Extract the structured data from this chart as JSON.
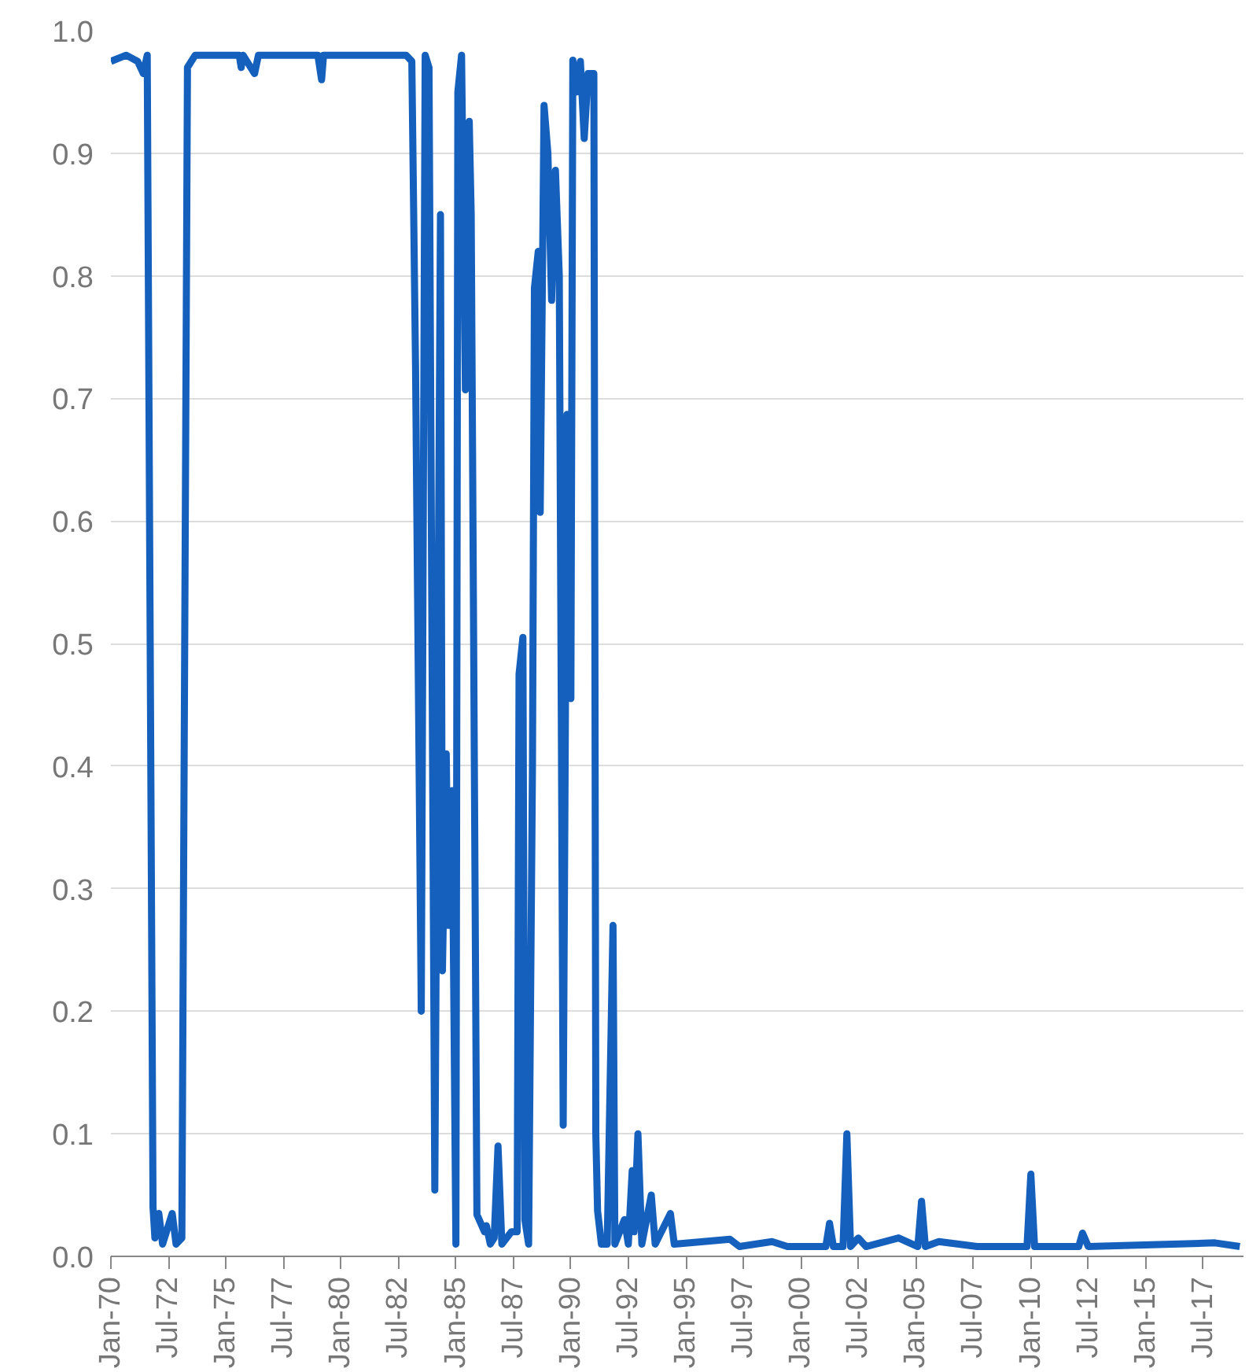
{
  "chart_data": {
    "type": "line",
    "color": "#1560bd",
    "grid": "y",
    "marker": "none",
    "line_style": "solid",
    "xlim": [
      "1970-01",
      "2019-04"
    ],
    "ylim": [
      0,
      1
    ],
    "yticks": [
      {
        "value": 0,
        "label": "0.0"
      },
      {
        "value": 0.1,
        "label": "0.1"
      },
      {
        "value": 0.2,
        "label": "0.2"
      },
      {
        "value": 0.3,
        "label": "0.3"
      },
      {
        "value": 0.4,
        "label": "0.4"
      },
      {
        "value": 0.5,
        "label": "0.5"
      },
      {
        "value": 0.6,
        "label": "0.6"
      },
      {
        "value": 0.7,
        "label": "0.7"
      },
      {
        "value": 0.8,
        "label": "0.8"
      },
      {
        "value": 0.9,
        "label": "0.9"
      },
      {
        "value": 1,
        "label": "1.0"
      }
    ],
    "xticks": [
      {
        "value": "1970-01",
        "label": "Jan-70"
      },
      {
        "value": "1972-07",
        "label": "Jul-72"
      },
      {
        "value": "1975-01",
        "label": "Jan-75"
      },
      {
        "value": "1977-07",
        "label": "Jul-77"
      },
      {
        "value": "1980-01",
        "label": "Jan-80"
      },
      {
        "value": "1982-07",
        "label": "Jul-82"
      },
      {
        "value": "1985-01",
        "label": "Jan-85"
      },
      {
        "value": "1987-07",
        "label": "Jul-87"
      },
      {
        "value": "1990-01",
        "label": "Jan-90"
      },
      {
        "value": "1992-07",
        "label": "Jul-92"
      },
      {
        "value": "1995-01",
        "label": "Jan-95"
      },
      {
        "value": "1997-07",
        "label": "Jul-97"
      },
      {
        "value": "2000-01",
        "label": "Jan-00"
      },
      {
        "value": "2002-07",
        "label": "Jul-02"
      },
      {
        "value": "2005-01",
        "label": "Jan-05"
      },
      {
        "value": "2007-07",
        "label": "Jul-07"
      },
      {
        "value": "2010-01",
        "label": "Jan-10"
      },
      {
        "value": "2012-07",
        "label": "Jul-12"
      },
      {
        "value": "2015-01",
        "label": "Jan-15"
      },
      {
        "value": "2017-07",
        "label": "Jul-17"
      }
    ],
    "x": [
      "1970-01",
      "1970-09",
      "1971-03",
      "1971-06",
      "1971-08",
      "1971-11",
      "1971-12",
      "1972-02",
      "1972-04",
      "1972-09",
      "1972-11",
      "1973-02",
      "1973-05",
      "1973-09",
      "1975-08",
      "1975-09",
      "1975-10",
      "1976-04",
      "1976-06",
      "1979-01",
      "1979-03",
      "1979-04",
      "1982-11",
      "1983-02",
      "1983-04",
      "1983-07",
      "1983-09",
      "1983-11",
      "1984-02",
      "1984-05",
      "1984-06",
      "1984-08",
      "1984-09",
      "1984-11",
      "1985-01",
      "1985-02",
      "1985-04",
      "1985-06",
      "1985-08",
      "1985-09",
      "1985-12",
      "1986-04",
      "1986-05",
      "1986-07",
      "1986-09",
      "1986-11",
      "1987-01",
      "1987-06",
      "1987-09",
      "1987-10",
      "1987-12",
      "1988-01",
      "1988-03",
      "1988-05",
      "1988-06",
      "1988-08",
      "1988-09",
      "1988-11",
      "1989-01",
      "1989-03",
      "1989-05",
      "1989-07",
      "1989-09",
      "1989-11",
      "1990-01",
      "1990-02",
      "1990-04",
      "1990-06",
      "1990-08",
      "1990-10",
      "1991-01",
      "1991-02",
      "1991-03",
      "1991-05",
      "1991-08",
      "1991-11",
      "1991-12",
      "1992-05",
      "1992-07",
      "1992-09",
      "1992-10",
      "1992-12",
      "1993-02",
      "1993-07",
      "1993-09",
      "1994-05",
      "1994-07",
      "1996-12",
      "1997-05",
      "1998-10",
      "1999-06",
      "2001-02",
      "2001-04",
      "2001-06",
      "2001-11",
      "2002-01",
      "2002-03",
      "2002-07",
      "2002-11",
      "2004-04",
      "2005-02",
      "2005-04",
      "2005-06",
      "2006-01",
      "2007-09",
      "2009-11",
      "2010-01",
      "2010-03",
      "2012-02",
      "2012-04",
      "2012-07",
      "2018-01",
      "2019-02"
    ],
    "values": [
      0.975,
      0.98,
      0.975,
      0.965,
      0.98,
      0.04,
      0.015,
      0.035,
      0.01,
      0.035,
      0.01,
      0.015,
      0.97,
      0.98,
      0.98,
      0.97,
      0.98,
      0.965,
      0.98,
      0.98,
      0.96,
      0.98,
      0.98,
      0.975,
      0.727,
      0.2,
      0.98,
      0.97,
      0.054,
      0.85,
      0.233,
      0.41,
      0.27,
      0.38,
      0.01,
      0.95,
      0.98,
      0.707,
      0.926,
      0.85,
      0.034,
      0.02,
      0.025,
      0.01,
      0.015,
      0.09,
      0.01,
      0.02,
      0.02,
      0.475,
      0.505,
      0.03,
      0.01,
      0.4,
      0.79,
      0.82,
      0.607,
      0.939,
      0.9,
      0.78,
      0.886,
      0.8,
      0.107,
      0.687,
      0.455,
      0.976,
      0.95,
      0.975,
      0.912,
      0.965,
      0.965,
      0.1,
      0.037,
      0.01,
      0.01,
      0.27,
      0.01,
      0.03,
      0.01,
      0.07,
      0.02,
      0.1,
      0.01,
      0.05,
      0.01,
      0.035,
      0.01,
      0.014,
      0.008,
      0.012,
      0.008,
      0.008,
      0.027,
      0.008,
      0.008,
      0.1,
      0.008,
      0.015,
      0.008,
      0.015,
      0.008,
      0.045,
      0.008,
      0.012,
      0.008,
      0.008,
      0.067,
      0.008,
      0.008,
      0.019,
      0.008,
      0.011,
      0.008
    ]
  }
}
